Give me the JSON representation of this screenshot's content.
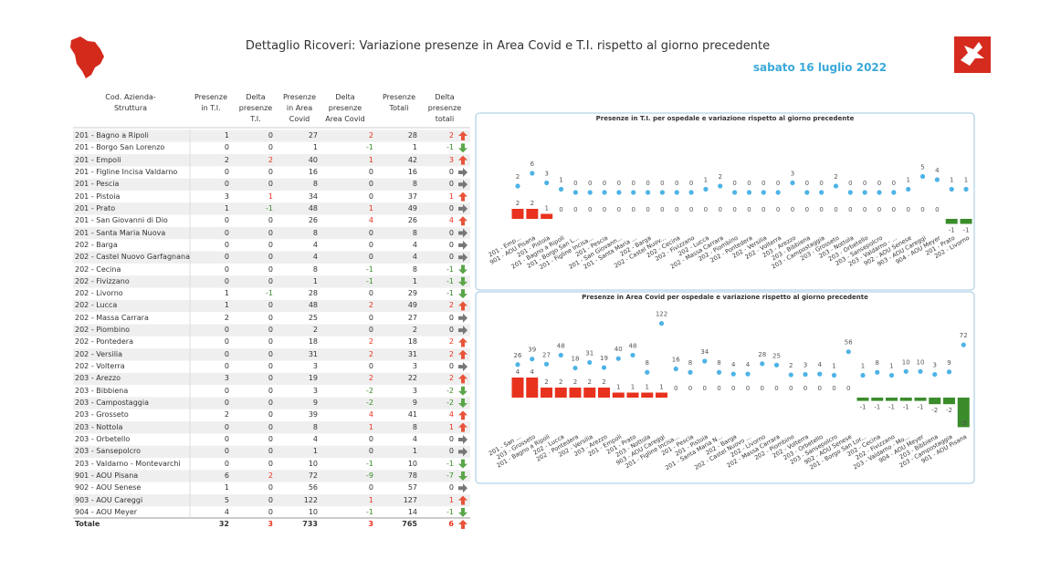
{
  "header": {
    "title": "Dettaglio Ricoveri: Variazione presenze in Area Covid e T.I. rispetto al giorno precedente",
    "date": "sabato 16 luglio 2022"
  },
  "table": {
    "columns": [
      "Cod. Azienda-Struttura",
      "Presenze\nin T.I.",
      "Delta\npresenze\nT.I.",
      "Presenze\nin Area\nCovid",
      "Delta\npresenze\nArea Covid",
      "Presenze\nTotali",
      "Delta\npresenze\ntotali"
    ],
    "rows": [
      [
        "201 - Bagno a Ripoli",
        1,
        0,
        27,
        2,
        28,
        2
      ],
      [
        "201 - Borgo San Lorenzo",
        0,
        0,
        1,
        -1,
        1,
        -1
      ],
      [
        "201 - Empoli",
        2,
        2,
        40,
        1,
        42,
        3
      ],
      [
        "201 - Figline Incisa Valdarno",
        0,
        0,
        16,
        0,
        16,
        0
      ],
      [
        "201 - Pescia",
        0,
        0,
        8,
        0,
        8,
        0
      ],
      [
        "201 - Pistoia",
        3,
        1,
        34,
        0,
        37,
        1
      ],
      [
        "201 - Prato",
        1,
        -1,
        48,
        1,
        49,
        0
      ],
      [
        "201 - San Giovanni di Dio",
        0,
        0,
        26,
        4,
        26,
        4
      ],
      [
        "201 - Santa Maria Nuova",
        0,
        0,
        8,
        0,
        8,
        0
      ],
      [
        "202 - Barga",
        0,
        0,
        4,
        0,
        4,
        0
      ],
      [
        "202 - Castel Nuovo Garfagnana",
        0,
        0,
        4,
        0,
        4,
        0
      ],
      [
        "202 - Cecina",
        0,
        0,
        8,
        -1,
        8,
        -1
      ],
      [
        "202 - Fivizzano",
        0,
        0,
        1,
        -1,
        1,
        -1
      ],
      [
        "202 - Livorno",
        1,
        -1,
        28,
        0,
        29,
        -1
      ],
      [
        "202 - Lucca",
        1,
        0,
        48,
        2,
        49,
        2
      ],
      [
        "202 - Massa Carrara",
        2,
        0,
        25,
        0,
        27,
        0
      ],
      [
        "202 - Piombino",
        0,
        0,
        2,
        0,
        2,
        0
      ],
      [
        "202 - Pontedera",
        0,
        0,
        18,
        2,
        18,
        2
      ],
      [
        "202 - Versilia",
        0,
        0,
        31,
        2,
        31,
        2
      ],
      [
        "202 - Volterra",
        0,
        0,
        3,
        0,
        3,
        0
      ],
      [
        "203 - Arezzo",
        3,
        0,
        19,
        2,
        22,
        2
      ],
      [
        "203 - Bibbiena",
        0,
        0,
        3,
        -2,
        3,
        -2
      ],
      [
        "203 - Campostaggia",
        0,
        0,
        9,
        -2,
        9,
        -2
      ],
      [
        "203 - Grosseto",
        2,
        0,
        39,
        4,
        41,
        4
      ],
      [
        "203 - Nottola",
        0,
        0,
        8,
        1,
        8,
        1
      ],
      [
        "203 - Orbetello",
        0,
        0,
        4,
        0,
        4,
        0
      ],
      [
        "203 - Sansepolcro",
        0,
        0,
        1,
        0,
        1,
        0
      ],
      [
        "203 - Valdarno - Montevarchi",
        0,
        0,
        10,
        -1,
        10,
        -1
      ],
      [
        "901 - AOU Pisana",
        6,
        2,
        72,
        -9,
        78,
        -7
      ],
      [
        "902 - AOU Senese",
        1,
        0,
        56,
        0,
        57,
        0
      ],
      [
        "903 - AOU Careggi",
        5,
        0,
        122,
        1,
        127,
        1
      ],
      [
        "904 - AOU Meyer",
        4,
        0,
        10,
        -1,
        14,
        -1
      ]
    ],
    "total": [
      "Totale",
      32,
      3,
      733,
      3,
      765,
      6
    ]
  },
  "chart_data": [
    {
      "type": "combo",
      "title": "Presenze in T.I. per ospedale e variazione rispetto al giorno precedente",
      "categories": [
        "201 - Emp...",
        "901 - AOU Pisana",
        "201 - Pistoia",
        "201 - Bagno a Ripoli",
        "201 - Borgo San L...",
        "201 - Figline Incisa...",
        "201 - Pescia",
        "201 - San Giovann...",
        "201 - Santa Maria ...",
        "202 - Barga",
        "202 - Castel Nuov...",
        "202 - Cecina",
        "202 - Fivizzano",
        "202 - Lucca",
        "202 - Massa Carrara",
        "202 - Piombino",
        "202 - Pontedera",
        "202 - Versilia",
        "202 - Volterra",
        "203 - Arezzo",
        "203 - Bibbiena",
        "203 - Campostaggia",
        "203 - Grosseto",
        "203 - Nottola",
        "203 - Orbetello",
        "203 - Sansepolcro",
        "203 - Valdarno - ...",
        "902 - AOU Senese",
        "903 - AOU Careggi",
        "904 - AOU Meyer",
        "201 - Prato",
        "202 - Livorno"
      ],
      "series": [
        {
          "type": "scatter",
          "color": "#4db3e6",
          "values": [
            2,
            6,
            3,
            1,
            0,
            0,
            0,
            0,
            0,
            0,
            0,
            0,
            0,
            1,
            2,
            0,
            0,
            0,
            0,
            3,
            0,
            0,
            2,
            0,
            0,
            0,
            0,
            1,
            5,
            4,
            1,
            1
          ]
        },
        {
          "type": "bar",
          "color_positive": "#e8321e",
          "color_negative": "#3b8c2b",
          "values": [
            2,
            2,
            1,
            0,
            0,
            0,
            0,
            0,
            0,
            0,
            0,
            0,
            0,
            0,
            0,
            0,
            0,
            0,
            0,
            0,
            0,
            0,
            0,
            0,
            0,
            0,
            0,
            0,
            0,
            0,
            -1,
            -1
          ]
        }
      ]
    },
    {
      "type": "combo",
      "title": "Presenze in Area Covid per ospedale e variazione rispetto al giorno precedente",
      "categories": [
        "201 - San ...",
        "203 - Grosseto",
        "201 - Bagno a Ripoli",
        "202 - Lucca",
        "202 - Pontedera",
        "202 - Versilia",
        "203 - Arezzo",
        "201 - Empoli",
        "201 - Prato",
        "203 - Nottola",
        "903 - AOU Careggi",
        "201 - Figline Incisa...",
        "201 - Pescia",
        "201 - Pistoia",
        "201 - Santa Maria N...",
        "202 - Barga",
        "202 - Castel Nuovo ...",
        "202 - Livorno",
        "202 - Massa Carrara",
        "202 - Piombino",
        "202 - Volterra",
        "203 - Orbetello",
        "203 - Sansepolcro",
        "902 - AOU Senese",
        "201 - Borgo San Lor...",
        "202 - Cecina",
        "202 - Fivizzano",
        "203 - Valdarno - Mo...",
        "904 - AOU Meyer",
        "203 - Bibbiena",
        "203 - Campostaggia",
        "901 - AOU Pisana"
      ],
      "series": [
        {
          "type": "scatter",
          "color": "#4db3e6",
          "values": [
            26,
            39,
            27,
            48,
            18,
            31,
            19,
            40,
            48,
            8,
            122,
            16,
            8,
            34,
            8,
            4,
            4,
            28,
            25,
            2,
            3,
            4,
            1,
            56,
            1,
            8,
            1,
            10,
            10,
            3,
            9,
            72
          ]
        },
        {
          "type": "bar",
          "color_positive": "#e8321e",
          "color_negative": "#3b8c2b",
          "values": [
            4,
            4,
            2,
            2,
            2,
            2,
            2,
            1,
            1,
            1,
            1,
            0,
            0,
            0,
            0,
            0,
            0,
            0,
            0,
            0,
            0,
            0,
            0,
            0,
            -1,
            -1,
            -1,
            -1,
            -1,
            -2,
            -2,
            -9
          ]
        }
      ]
    }
  ]
}
